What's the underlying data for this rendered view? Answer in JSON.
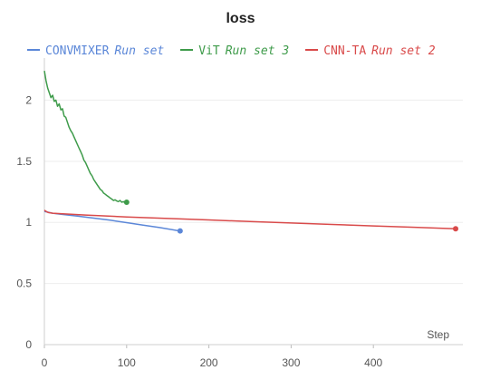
{
  "chart_data": {
    "type": "line",
    "title": "loss",
    "xlabel": "Step",
    "ylabel": "",
    "xlim": [
      0,
      500
    ],
    "ylim": [
      0,
      2.3
    ],
    "x_ticks": [
      "0",
      "100",
      "200",
      "300",
      "400"
    ],
    "y_ticks": [
      "0",
      "0.5",
      "1",
      "1.5",
      "2"
    ],
    "grid": true,
    "legend_position": "top",
    "series": [
      {
        "name": "CONVMIXER",
        "run": "Run set",
        "color": "#5b87d8",
        "x": [
          0,
          10,
          20,
          40,
          60,
          80,
          100,
          120,
          140,
          165
        ],
        "y": [
          1.09,
          1.075,
          1.067,
          1.052,
          1.035,
          1.018,
          0.998,
          0.978,
          0.958,
          0.93
        ]
      },
      {
        "name": "ViT",
        "run": "Run set 3",
        "color": "#3e9b4a",
        "x": [
          0,
          2,
          4,
          6,
          8,
          10,
          12,
          14,
          16,
          18,
          20,
          22,
          24,
          26,
          28,
          30,
          32,
          34,
          36,
          38,
          40,
          42,
          44,
          46,
          48,
          50,
          52,
          54,
          56,
          58,
          60,
          62,
          64,
          66,
          68,
          70,
          72,
          74,
          76,
          78,
          80,
          82,
          84,
          86,
          88,
          90,
          92,
          94,
          96,
          98,
          100
        ],
        "y": [
          2.24,
          2.16,
          2.1,
          2.06,
          2.02,
          2.04,
          1.99,
          2.0,
          1.95,
          1.97,
          1.92,
          1.93,
          1.87,
          1.86,
          1.82,
          1.78,
          1.75,
          1.73,
          1.7,
          1.67,
          1.64,
          1.61,
          1.58,
          1.55,
          1.51,
          1.49,
          1.46,
          1.43,
          1.4,
          1.38,
          1.35,
          1.33,
          1.31,
          1.29,
          1.27,
          1.26,
          1.24,
          1.23,
          1.22,
          1.21,
          1.2,
          1.19,
          1.18,
          1.185,
          1.175,
          1.17,
          1.18,
          1.165,
          1.17,
          1.16,
          1.165
        ]
      },
      {
        "name": "CNN-TA",
        "run": "Run set 2",
        "color": "#d94a4a",
        "x": [
          0,
          2,
          5,
          10,
          50,
          100,
          150,
          200,
          250,
          300,
          350,
          400,
          450,
          500
        ],
        "y": [
          1.1,
          1.09,
          1.08,
          1.075,
          1.06,
          1.045,
          1.032,
          1.02,
          1.007,
          0.995,
          0.983,
          0.971,
          0.96,
          0.948
        ]
      }
    ]
  }
}
